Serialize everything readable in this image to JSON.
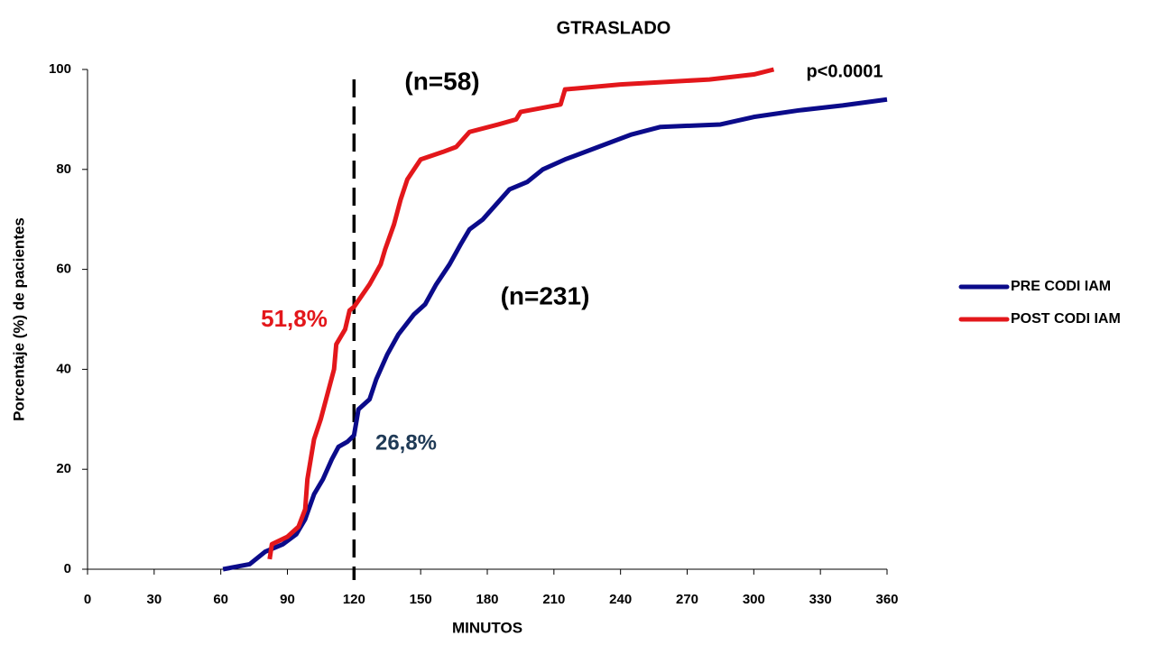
{
  "chart_data": {
    "type": "line",
    "title": "GTRASLADO",
    "xlabel": "MINUTOS",
    "ylabel": "Porcentaje (%) de pacientes",
    "xlim": [
      0,
      360
    ],
    "xticks": [
      0,
      30,
      60,
      90,
      120,
      150,
      180,
      210,
      240,
      270,
      300,
      330,
      360
    ],
    "ylim": [
      0,
      100
    ],
    "yticks": [
      0,
      20,
      40,
      60,
      80,
      100
    ],
    "grid": false,
    "legend": "right",
    "vline": 120,
    "series": [
      {
        "name": "PRE CODI IAM",
        "color": "#0b0b8a",
        "x": [
          61,
          73,
          80,
          88,
          94,
          98,
          102,
          106,
          110,
          113,
          117,
          120,
          122,
          127,
          130,
          135,
          140,
          147,
          152,
          157,
          163,
          168,
          172,
          178,
          184,
          190,
          198,
          205,
          215,
          230,
          245,
          258,
          285,
          300,
          320,
          340,
          360
        ],
        "values": [
          0,
          1,
          3.5,
          5,
          7,
          10,
          15,
          18,
          22,
          24.5,
          25.5,
          26.8,
          32,
          34,
          38,
          43,
          47,
          51,
          53,
          57,
          61,
          65,
          68,
          70,
          73,
          76,
          77.5,
          80,
          82,
          84.5,
          87,
          88.5,
          89,
          90.5,
          91.8,
          92.8,
          94
        ]
      },
      {
        "name": "POST CODI IAM",
        "color": "#e3171b",
        "x": [
          82,
          83,
          90,
          95,
          98,
          99,
          102,
          105,
          108,
          111,
          112,
          116,
          118,
          120,
          127,
          132,
          134,
          138,
          141,
          144,
          147,
          150,
          160,
          166,
          172,
          185,
          193,
          195,
          213,
          215,
          240,
          280,
          300,
          309
        ],
        "values": [
          2,
          5,
          6.5,
          8.5,
          12,
          18,
          26,
          30,
          35,
          40,
          45,
          48,
          51.8,
          52.5,
          57,
          61,
          64,
          69,
          74,
          78,
          80,
          82,
          83.5,
          84.5,
          87.5,
          89,
          90,
          91.5,
          93,
          96,
          97,
          98,
          99,
          100
        ]
      }
    ],
    "annotations": [
      {
        "text": "(n=58)",
        "color": "#000000"
      },
      {
        "text": "(n=231)",
        "color": "#000000"
      },
      {
        "text": "p<0.0001",
        "color": "#000000"
      },
      {
        "text": "51,8%",
        "color": "#e3171b"
      },
      {
        "text": "26,8%",
        "color": "#1f3a56"
      }
    ]
  }
}
